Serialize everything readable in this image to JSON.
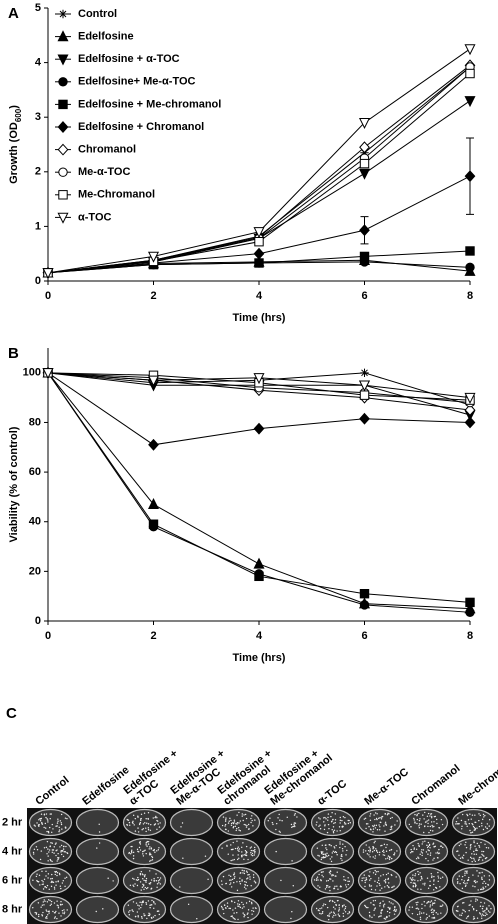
{
  "chart_data": [
    {
      "type": "line",
      "panel": "A",
      "x": [
        0,
        2,
        4,
        6,
        8
      ],
      "xlim": [
        0,
        8
      ],
      "xticks": [
        0,
        2,
        4,
        6,
        8
      ],
      "ylim": [
        0,
        5
      ],
      "yticks": [
        0,
        1,
        2,
        3,
        4,
        5
      ],
      "x_label": "Time (hrs)",
      "y_label": [
        "Growth (OD",
        "600",
        ")"
      ],
      "legend": "upper left",
      "series": [
        {
          "name": "Control",
          "color": "#000000",
          "marker": "asterisk",
          "filled": true,
          "values": [
            0.15,
            0.38,
            0.82,
            2.35,
            3.92
          ]
        },
        {
          "name": "Edelfosine",
          "color": "#000000",
          "marker": "triangle-up",
          "filled": true,
          "values": [
            0.15,
            0.32,
            0.35,
            0.38,
            0.18
          ]
        },
        {
          "name": "Edelfosine + α-TOC",
          "color": "#000000",
          "marker": "triangle-down",
          "filled": true,
          "values": [
            0.15,
            0.35,
            0.78,
            1.97,
            3.3
          ]
        },
        {
          "name": "Edelfosine+ Me-α-TOC",
          "color": "#000000",
          "marker": "circle",
          "filled": true,
          "values": [
            0.15,
            0.3,
            0.33,
            0.35,
            0.25
          ]
        },
        {
          "name": "Edelfosine + Me-chromanol",
          "color": "#000000",
          "marker": "square",
          "filled": true,
          "values": [
            0.15,
            0.3,
            0.33,
            0.45,
            0.55
          ]
        },
        {
          "name": "Edelfosine + Chromanol",
          "color": "#000000",
          "marker": "diamond",
          "filled": true,
          "values": [
            0.15,
            0.33,
            0.5,
            0.93,
            1.92
          ],
          "errors": [
            null,
            null,
            null,
            0.25,
            0.7
          ]
        },
        {
          "name": "Chromanol",
          "color": "#000000",
          "marker": "diamond",
          "filled": false,
          "values": [
            0.15,
            0.38,
            0.8,
            2.45,
            3.95
          ]
        },
        {
          "name": "Me-α-TOC",
          "color": "#000000",
          "marker": "circle",
          "filled": false,
          "values": [
            0.15,
            0.37,
            0.78,
            2.25,
            3.92
          ]
        },
        {
          "name": "Me-Chromanol",
          "color": "#000000",
          "marker": "square",
          "filled": false,
          "values": [
            0.15,
            0.36,
            0.72,
            2.15,
            3.8
          ]
        },
        {
          "name": "α-TOC",
          "color": "#000000",
          "marker": "triangle-down",
          "filled": false,
          "values": [
            0.15,
            0.45,
            0.9,
            2.9,
            4.25
          ]
        }
      ]
    },
    {
      "type": "line",
      "panel": "B",
      "x": [
        0,
        2,
        4,
        6,
        8
      ],
      "xlim": [
        0,
        8
      ],
      "xticks": [
        0,
        2,
        4,
        6,
        8
      ],
      "ylim": [
        0,
        110
      ],
      "yticks": [
        0,
        20,
        40,
        60,
        80,
        100
      ],
      "x_label": "Time (hrs)",
      "y_label": [
        "Viability (% of control)"
      ],
      "series": [
        {
          "color": "#000000",
          "marker": "asterisk",
          "filled": true,
          "values": [
            100,
            96,
            97,
            100,
            87
          ]
        },
        {
          "color": "#000000",
          "marker": "triangle-up",
          "filled": true,
          "values": [
            100,
            47,
            23,
            7,
            5
          ]
        },
        {
          "color": "#000000",
          "marker": "triangle-down",
          "filled": true,
          "values": [
            100,
            95,
            95,
            95,
            83
          ]
        },
        {
          "color": "#000000",
          "marker": "circle",
          "filled": true,
          "values": [
            100,
            38,
            19,
            6.5,
            3.5
          ]
        },
        {
          "color": "#000000",
          "marker": "square",
          "filled": true,
          "values": [
            100,
            39,
            18,
            11,
            7.5
          ]
        },
        {
          "color": "#000000",
          "marker": "diamond",
          "filled": true,
          "values": [
            100,
            71,
            77.5,
            81.5,
            80
          ]
        },
        {
          "color": "#000000",
          "marker": "diamond",
          "filled": false,
          "values": [
            100,
            97,
            93,
            90,
            85
          ]
        },
        {
          "color": "#000000",
          "marker": "circle",
          "filled": false,
          "values": [
            100,
            98,
            94,
            92,
            88
          ]
        },
        {
          "color": "#000000",
          "marker": "square",
          "filled": false,
          "values": [
            100,
            99,
            96,
            91,
            89
          ]
        },
        {
          "color": "#000000",
          "marker": "triangle-down",
          "filled": false,
          "values": [
            100,
            97,
            98,
            95,
            90
          ]
        }
      ]
    }
  ],
  "photo_panel": {
    "panel": "C",
    "columns": [
      [
        "Control"
      ],
      [
        "Edelfosine"
      ],
      [
        "Edelfosine +",
        "α-TOC"
      ],
      [
        "Edelfosine +",
        "Me-α-TOC"
      ],
      [
        "Edelfosine +",
        "chromanol"
      ],
      [
        "Edelfosine +",
        "Me-chromanol"
      ],
      [
        "α-TOC"
      ],
      [
        "Me-α-TOC"
      ],
      [
        "Chromanol"
      ],
      [
        "Me-chromanol"
      ]
    ],
    "rows": [
      "2 hr",
      "4 hr",
      "6 hr",
      "8 hr"
    ]
  }
}
